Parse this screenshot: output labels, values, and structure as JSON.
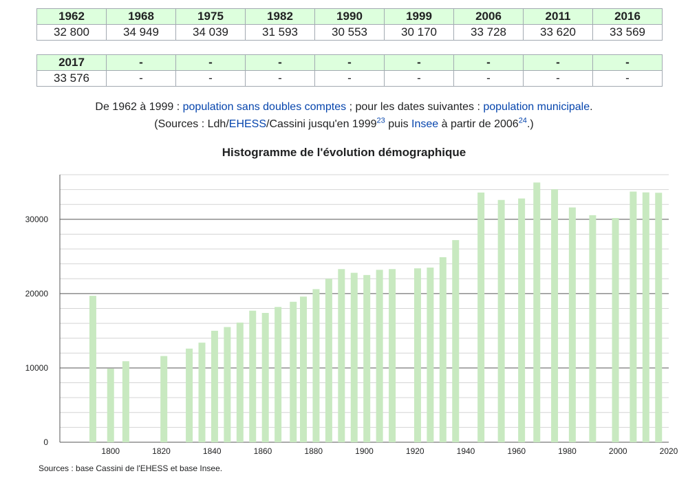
{
  "table": {
    "rows": [
      {
        "years": [
          "1962",
          "1968",
          "1975",
          "1982",
          "1990",
          "1999",
          "2006",
          "2011",
          "2016"
        ],
        "values": [
          "32 800",
          "34 949",
          "34 039",
          "31 593",
          "30 553",
          "30 170",
          "33 728",
          "33 620",
          "33 569"
        ]
      },
      {
        "years": [
          "2017",
          "-",
          "-",
          "-",
          "-",
          "-",
          "-",
          "-",
          "-"
        ],
        "values": [
          "33 576",
          "-",
          "-",
          "-",
          "-",
          "-",
          "-",
          "-",
          "-"
        ]
      }
    ]
  },
  "notes": {
    "line1_a": "De 1962 à 1999 : ",
    "line1_link1": "population sans doubles comptes",
    "line1_b": " ; pour les dates suivantes : ",
    "line1_link2": "population municipale",
    "line1_c": ".",
    "line2_a": "(Sources : Ldh/",
    "line2_link1": "EHESS",
    "line2_b": "/Cassini jusqu'en 1999",
    "line2_sup1": "23",
    "line2_c": " puis ",
    "line2_link2": "Insee",
    "line2_d": " à partir de 2006",
    "line2_sup2": "24",
    "line2_e": ".)"
  },
  "chart_data": {
    "type": "bar",
    "title": "Histogramme de l'évolution démographique",
    "xlabel": "",
    "ylabel": "",
    "xlim": [
      1780,
      2020
    ],
    "ylim": [
      0,
      36000
    ],
    "xticks": [
      1800,
      1820,
      1840,
      1860,
      1880,
      1900,
      1920,
      1940,
      1960,
      1980,
      2000,
      2020
    ],
    "yticks": [
      0,
      10000,
      20000,
      30000
    ],
    "grid": "horizontal",
    "bar_color": "#c8e9c0",
    "points": [
      {
        "x": 1793,
        "y": 19700
      },
      {
        "x": 1800,
        "y": 9900
      },
      {
        "x": 1806,
        "y": 10900
      },
      {
        "x": 1821,
        "y": 11600
      },
      {
        "x": 1831,
        "y": 12600
      },
      {
        "x": 1836,
        "y": 13400
      },
      {
        "x": 1841,
        "y": 15000
      },
      {
        "x": 1846,
        "y": 15500
      },
      {
        "x": 1851,
        "y": 16100
      },
      {
        "x": 1856,
        "y": 17700
      },
      {
        "x": 1861,
        "y": 17400
      },
      {
        "x": 1866,
        "y": 18200
      },
      {
        "x": 1872,
        "y": 18900
      },
      {
        "x": 1876,
        "y": 19600
      },
      {
        "x": 1881,
        "y": 20600
      },
      {
        "x": 1886,
        "y": 22000
      },
      {
        "x": 1891,
        "y": 23300
      },
      {
        "x": 1896,
        "y": 22800
      },
      {
        "x": 1901,
        "y": 22500
      },
      {
        "x": 1906,
        "y": 23200
      },
      {
        "x": 1911,
        "y": 23300
      },
      {
        "x": 1921,
        "y": 23400
      },
      {
        "x": 1926,
        "y": 23500
      },
      {
        "x": 1931,
        "y": 24900
      },
      {
        "x": 1936,
        "y": 27200
      },
      {
        "x": 1946,
        "y": 33600
      },
      {
        "x": 1954,
        "y": 32600
      },
      {
        "x": 1962,
        "y": 32800
      },
      {
        "x": 1968,
        "y": 34949
      },
      {
        "x": 1975,
        "y": 34039
      },
      {
        "x": 1982,
        "y": 31593
      },
      {
        "x": 1990,
        "y": 30553
      },
      {
        "x": 1999,
        "y": 30170
      },
      {
        "x": 2006,
        "y": 33728
      },
      {
        "x": 2011,
        "y": 33620
      },
      {
        "x": 2016,
        "y": 33569
      }
    ]
  },
  "sources": "Sources : base Cassini de l'EHESS et base Insee."
}
